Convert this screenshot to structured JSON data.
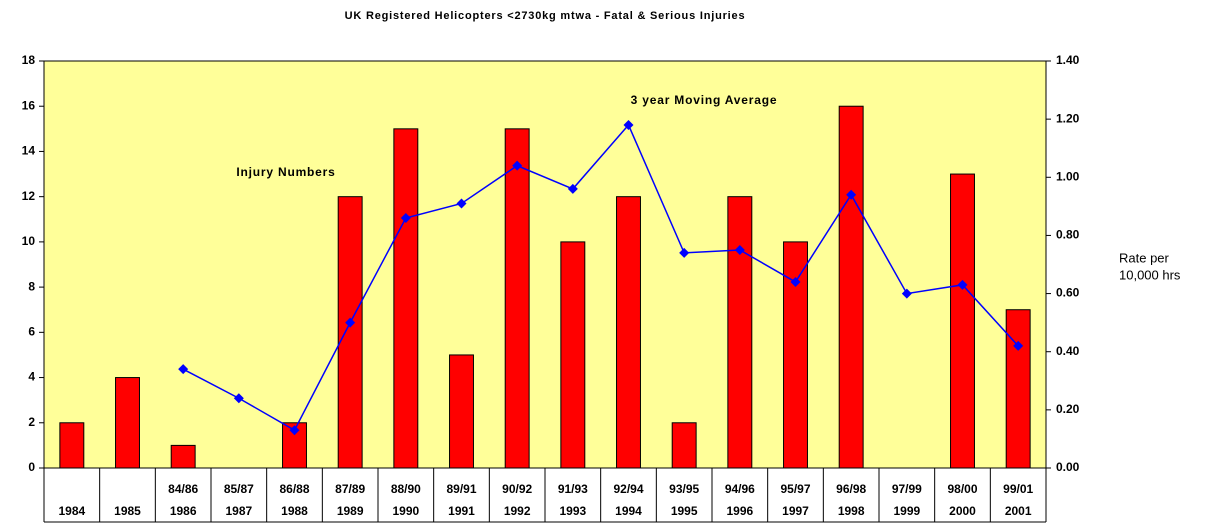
{
  "chart_data": {
    "type": "bar_line",
    "title": "UK Registered Helicopters <2730kg mtwa - Fatal & Serious Injuries",
    "categories": [
      "1984",
      "1985",
      "1986",
      "1987",
      "1988",
      "1989",
      "1990",
      "1991",
      "1992",
      "1993",
      "1994",
      "1995",
      "1996",
      "1997",
      "1998",
      "1999",
      "2000",
      "2001"
    ],
    "period_labels": [
      null,
      null,
      "84/86",
      "85/87",
      "86/88",
      "87/89",
      "88/90",
      "89/91",
      "90/92",
      "91/93",
      "92/94",
      "93/95",
      "94/96",
      "95/97",
      "96/98",
      "97/99",
      "98/00",
      "99/01"
    ],
    "series": [
      {
        "name": "Injury Numbers",
        "type": "bar",
        "color": "#ff0000",
        "axis": "y",
        "values": [
          2,
          4,
          1,
          0,
          2,
          12,
          15,
          5,
          15,
          10,
          12,
          2,
          12,
          10,
          16,
          0,
          13,
          7
        ]
      },
      {
        "name": "3 year Moving Average",
        "type": "line",
        "color": "#0000ff",
        "axis": "y2",
        "values": [
          null,
          null,
          0.34,
          0.24,
          0.13,
          0.5,
          0.86,
          0.91,
          1.04,
          0.96,
          1.18,
          0.74,
          0.75,
          0.64,
          0.94,
          0.6,
          0.63,
          0.42
        ]
      }
    ],
    "y2_label": [
      "Rate per",
      "10,000 hrs"
    ],
    "ylim": [
      0,
      18
    ],
    "yticks": [
      0,
      2,
      4,
      6,
      8,
      10,
      12,
      14,
      16,
      18
    ],
    "y2lim": [
      0,
      1.4
    ],
    "y2ticks": [
      {
        "value": 0,
        "label": "0.00"
      },
      {
        "value": 0.2,
        "label": "0.20"
      },
      {
        "value": 0.4,
        "label": "0.40"
      },
      {
        "value": 0.6,
        "label": "0.60"
      },
      {
        "value": 0.8,
        "label": "0.80"
      },
      {
        "value": 1.0,
        "label": "1.00"
      },
      {
        "value": 1.2,
        "label": "1.20"
      },
      {
        "value": 1.4,
        "label": "1.40"
      }
    ],
    "background": "#ffff99"
  }
}
